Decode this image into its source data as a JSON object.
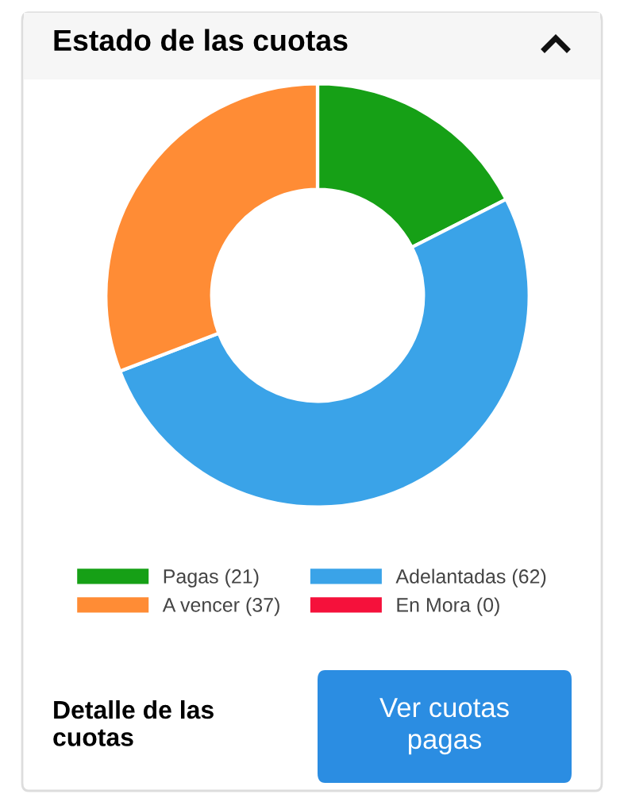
{
  "chart_data": {
    "type": "donut",
    "title": "Estado de las cuotas",
    "categories": [
      "Pagas (21)",
      "Adelantadas (62)",
      "A vencer (37)",
      "En Mora (0)"
    ],
    "values": [
      21,
      62,
      37,
      0
    ],
    "colors": [
      "#16a016",
      "#3aa3e8",
      "#ff8c35",
      "#f5113b"
    ],
    "legend": "bottom",
    "annotations": [
      "Detalle de las cuotas",
      "Ver cuotas pagas"
    ]
  }
}
